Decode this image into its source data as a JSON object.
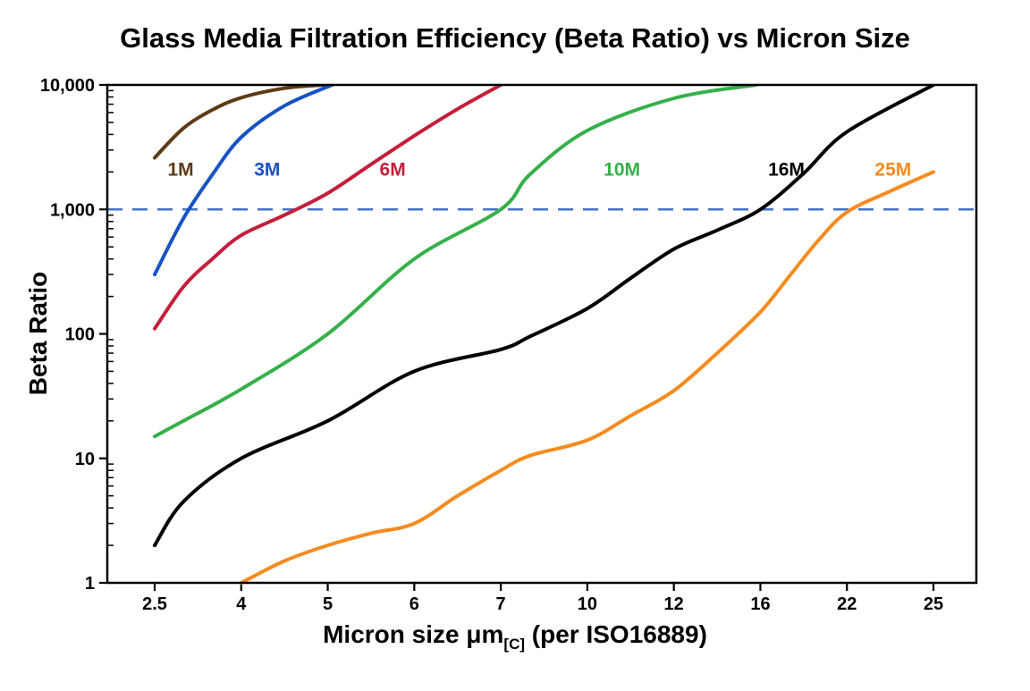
{
  "chart_data": {
    "type": "line",
    "title": "Glass Media Filtration Efficiency (Beta Ratio) vs Micron Size",
    "ylabel": "Beta Ratio",
    "xlabel": {
      "pre": "Micron size μm",
      "sub": "[C]",
      "post": " (per ISO16889)"
    },
    "x_tick_labels": [
      "2.5",
      "4",
      "5",
      "6",
      "7",
      "10",
      "12",
      "16",
      "22",
      "25"
    ],
    "x_values": [
      2.5,
      4,
      5,
      6,
      7,
      10,
      12,
      16,
      22,
      25
    ],
    "x_axis_spacing": "categorical-equal",
    "y_scale": "log",
    "ylim": [
      1,
      10000
    ],
    "y_tick_labels": [
      "1",
      "10",
      "100",
      "1,000",
      "10,000"
    ],
    "grid": "off",
    "legend": "inline-labels",
    "axis_color": "#000000",
    "reference_line": {
      "beta": 1000,
      "color": "#4472C4",
      "style": "dashed"
    },
    "series": [
      {
        "name": "1M",
        "color": "#5E3A16",
        "label_at": {
          "micron": 2.95,
          "beta": 2100
        },
        "points": [
          [
            2.5,
            2600
          ],
          [
            3,
            4500
          ],
          [
            3.5,
            6300
          ],
          [
            4,
            7900
          ],
          [
            4.5,
            9400
          ],
          [
            4.95,
            10000
          ]
        ]
      },
      {
        "name": "3M",
        "color": "#1853C4",
        "label_at": {
          "micron": 4.3,
          "beta": 2100
        },
        "points": [
          [
            2.5,
            300
          ],
          [
            3,
            850
          ],
          [
            3.5,
            1900
          ],
          [
            4,
            3800
          ],
          [
            4.5,
            6800
          ],
          [
            5.05,
            10000
          ]
        ]
      },
      {
        "name": "6M",
        "color": "#C41E3A",
        "label_at": {
          "micron": 5.75,
          "beta": 2100
        },
        "points": [
          [
            2.5,
            110
          ],
          [
            3,
            240
          ],
          [
            3.5,
            400
          ],
          [
            4,
            620
          ],
          [
            4.5,
            900
          ],
          [
            5,
            1350
          ],
          [
            5.5,
            2300
          ],
          [
            6,
            3900
          ],
          [
            6.5,
            6400
          ],
          [
            7,
            10000
          ]
        ]
      },
      {
        "name": "10M",
        "color": "#35B04A",
        "label_at": {
          "micron": 10.8,
          "beta": 2100
        },
        "points": [
          [
            2.5,
            15
          ],
          [
            3,
            20
          ],
          [
            4,
            36
          ],
          [
            5,
            100
          ],
          [
            6,
            400
          ],
          [
            7,
            1000
          ],
          [
            8,
            1900
          ],
          [
            10,
            4300
          ],
          [
            12,
            7800
          ],
          [
            15.8,
            10000
          ]
        ]
      },
      {
        "name": "16M",
        "color": "#000000",
        "label_at": {
          "micron": 17.8,
          "beta": 2100
        },
        "points": [
          [
            2.5,
            2
          ],
          [
            3,
            4.5
          ],
          [
            4,
            10
          ],
          [
            5,
            20
          ],
          [
            6,
            50
          ],
          [
            7,
            75
          ],
          [
            8,
            95
          ],
          [
            10,
            160
          ],
          [
            11,
            280
          ],
          [
            12,
            480
          ],
          [
            14,
            680
          ],
          [
            16,
            1000
          ],
          [
            19,
            1950
          ],
          [
            22,
            4200
          ],
          [
            25,
            10000
          ]
        ]
      },
      {
        "name": "25M",
        "color": "#F68B1F",
        "label_at": {
          "micron": 23.6,
          "beta": 2100
        },
        "points": [
          [
            4,
            1
          ],
          [
            4.5,
            1.5
          ],
          [
            5,
            2
          ],
          [
            5.5,
            2.5
          ],
          [
            6,
            3
          ],
          [
            6.5,
            5
          ],
          [
            7,
            8
          ],
          [
            8,
            10.5
          ],
          [
            10,
            14
          ],
          [
            11,
            22
          ],
          [
            12,
            35
          ],
          [
            14,
            70
          ],
          [
            16,
            150
          ],
          [
            18,
            290
          ],
          [
            20,
            560
          ],
          [
            22,
            950
          ],
          [
            23.5,
            1400
          ],
          [
            25,
            2000
          ]
        ]
      }
    ]
  }
}
